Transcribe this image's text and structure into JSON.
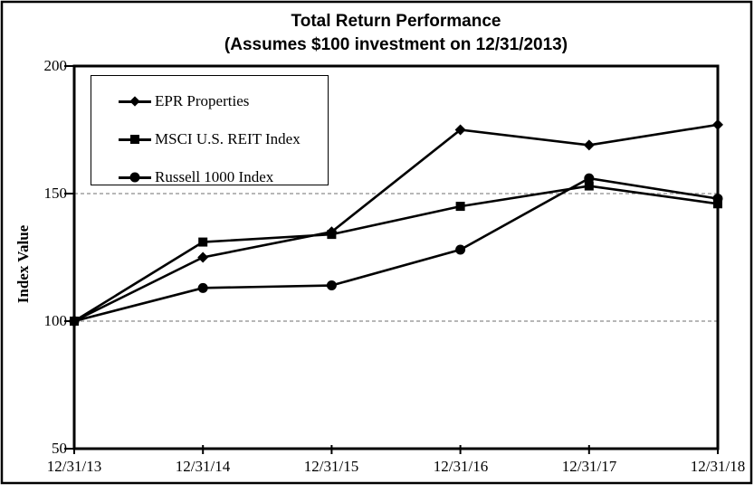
{
  "chart_data": {
    "type": "line",
    "title": "Total Return Performance",
    "subtitle": "(Assumes $100 investment on 12/31/2013)",
    "categories": [
      "12/31/13",
      "12/31/14",
      "12/31/15",
      "12/31/16",
      "12/31/17",
      "12/31/18"
    ],
    "series": [
      {
        "name": "EPR Properties",
        "marker": "diamond",
        "values": [
          100,
          125,
          135,
          175,
          169,
          177
        ]
      },
      {
        "name": "MSCI U.S. REIT Index",
        "marker": "square",
        "values": [
          100,
          131,
          134,
          145,
          153,
          146
        ]
      },
      {
        "name": "Russell 1000 Index",
        "marker": "circle",
        "values": [
          100,
          113,
          114,
          128,
          156,
          148
        ]
      }
    ],
    "xlabel": "",
    "ylabel": "Index Value",
    "ylim": [
      50,
      200
    ],
    "yticks": [
      200,
      150,
      100,
      50
    ],
    "gridlines_at": [
      150,
      100
    ],
    "grid": "horizontal dashed lines at 100 and 150 only",
    "legend_position": "top-left inside plot",
    "colors": {
      "series": "#000000",
      "grid": "#8c8c8c",
      "background": "#ffffff",
      "border": "#000000"
    }
  }
}
